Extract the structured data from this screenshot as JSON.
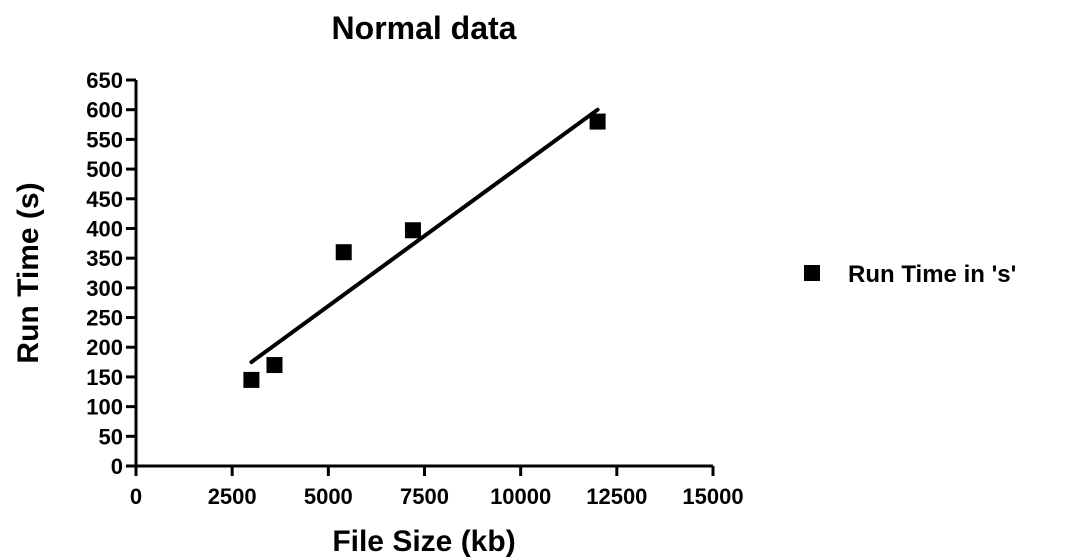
{
  "chart_data": {
    "type": "scatter",
    "title": "Normal data",
    "xlabel": "File Size (kb)",
    "ylabel": "Run Time (s)",
    "xlim": [
      0,
      15000
    ],
    "ylim": [
      0,
      650
    ],
    "x_ticks": [
      0,
      2500,
      5000,
      7500,
      10000,
      12500,
      15000
    ],
    "y_ticks": [
      0,
      50,
      100,
      150,
      200,
      250,
      300,
      350,
      400,
      450,
      500,
      550,
      600,
      650
    ],
    "x_tick_labels": [
      "0",
      "2500",
      "5000",
      "7500",
      "10000",
      "12500",
      "15000"
    ],
    "y_tick_labels": [
      "0",
      "50",
      "100",
      "150",
      "200",
      "250",
      "300",
      "350",
      "400",
      "450",
      "500",
      "550",
      "600",
      "650"
    ],
    "grid": false,
    "legend_position": "right",
    "series": [
      {
        "name": "Run Time in 's'",
        "marker": "square",
        "color": "#000000",
        "points": [
          {
            "x": 3000,
            "y": 145
          },
          {
            "x": 3600,
            "y": 170
          },
          {
            "x": 5400,
            "y": 360
          },
          {
            "x": 7200,
            "y": 397
          },
          {
            "x": 12000,
            "y": 580
          }
        ]
      }
    ],
    "fit_line": {
      "type": "linear",
      "color": "#000000",
      "x": [
        3000,
        12000
      ],
      "y": [
        175,
        600
      ]
    }
  }
}
